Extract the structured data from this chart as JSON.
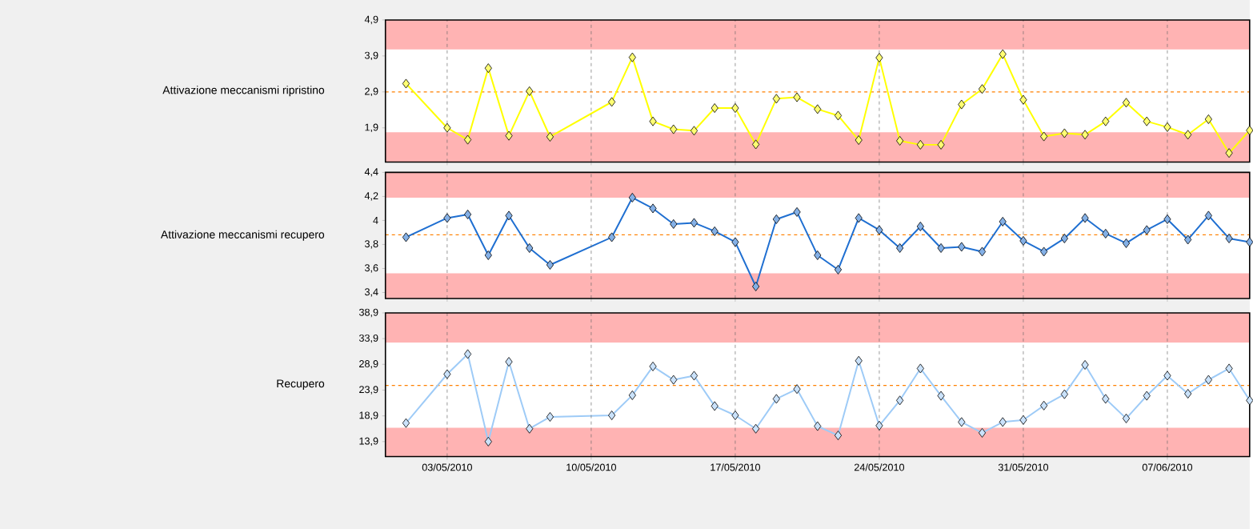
{
  "chart_data": [
    {
      "type": "line",
      "ylabel": "Attivazione meccanismi ripristino",
      "color": "#ffff00",
      "marker": "diamond",
      "line_style": "solid",
      "grid": "x",
      "tick_labels": "y",
      "x": [
        "2010-05-01",
        "2010-05-03",
        "2010-05-04",
        "2010-05-05",
        "2010-05-06",
        "2010-05-07",
        "2010-05-08",
        "2010-05-11",
        "2010-05-12",
        "2010-05-13",
        "2010-05-14",
        "2010-05-15",
        "2010-05-16",
        "2010-05-17",
        "2010-05-18",
        "2010-05-19",
        "2010-05-20",
        "2010-05-21",
        "2010-05-22",
        "2010-05-23",
        "2010-05-24",
        "2010-05-25",
        "2010-05-26",
        "2010-05-27",
        "2010-05-28",
        "2010-05-29",
        "2010-05-30",
        "2010-05-31",
        "2010-06-01",
        "2010-06-02",
        "2010-06-03",
        "2010-06-04",
        "2010-06-05",
        "2010-06-06",
        "2010-06-07",
        "2010-06-08",
        "2010-06-09",
        "2010-06-10",
        "2010-06-11"
      ],
      "values": [
        3.13,
        1.9,
        1.57,
        3.56,
        1.68,
        2.92,
        1.65,
        2.62,
        3.86,
        2.08,
        1.86,
        1.82,
        2.45,
        2.45,
        1.44,
        2.71,
        2.75,
        2.42,
        2.24,
        1.56,
        3.85,
        1.54,
        1.43,
        1.43,
        2.55,
        2.98,
        3.95,
        2.68,
        1.66,
        1.75,
        1.71,
        2.08,
        2.6,
        2.08,
        1.92,
        1.71,
        2.14,
        1.2,
        1.83
      ],
      "xlim": [
        "2010-04-30",
        "2010-06-11"
      ],
      "ylim": [
        0.95,
        4.9
      ],
      "yticks": [
        {
          "value": 1.9,
          "label": "1,9"
        },
        {
          "value": 2.9,
          "label": "2,9"
        },
        {
          "value": 3.9,
          "label": "3,9"
        },
        {
          "value": 4.9,
          "label": "4,9"
        }
      ],
      "ref_lines": [
        {
          "axis": "y",
          "value": 2.9,
          "color": "#ff8000",
          "line_style": "dashed"
        }
      ],
      "bands": [
        {
          "axis": "y",
          "from": 4.08,
          "to": 4.9,
          "color": "#ffb3b3"
        },
        {
          "axis": "y",
          "from": 0.95,
          "to": 1.78,
          "color": "#ffb3b3"
        }
      ]
    },
    {
      "type": "line",
      "ylabel": "Attivazione meccanismi recupero",
      "color": "#1f6fd1",
      "marker": "diamond",
      "line_style": "solid",
      "grid": "x",
      "tick_labels": "y",
      "x": [
        "2010-05-01",
        "2010-05-03",
        "2010-05-04",
        "2010-05-05",
        "2010-05-06",
        "2010-05-07",
        "2010-05-08",
        "2010-05-11",
        "2010-05-12",
        "2010-05-13",
        "2010-05-14",
        "2010-05-15",
        "2010-05-16",
        "2010-05-17",
        "2010-05-18",
        "2010-05-19",
        "2010-05-20",
        "2010-05-21",
        "2010-05-22",
        "2010-05-23",
        "2010-05-24",
        "2010-05-25",
        "2010-05-26",
        "2010-05-27",
        "2010-05-28",
        "2010-05-29",
        "2010-05-30",
        "2010-05-31",
        "2010-06-01",
        "2010-06-02",
        "2010-06-03",
        "2010-06-04",
        "2010-06-05",
        "2010-06-06",
        "2010-06-07",
        "2010-06-08",
        "2010-06-09",
        "2010-06-10",
        "2010-06-11"
      ],
      "values": [
        3.86,
        4.02,
        4.05,
        3.71,
        4.04,
        3.77,
        3.63,
        3.86,
        4.19,
        4.1,
        3.97,
        3.98,
        3.91,
        3.82,
        3.45,
        4.01,
        4.07,
        3.71,
        3.59,
        4.02,
        3.92,
        3.77,
        3.95,
        3.77,
        3.78,
        3.74,
        3.99,
        3.83,
        3.74,
        3.85,
        4.02,
        3.89,
        3.81,
        3.92,
        4.01,
        3.84,
        4.04,
        3.85,
        3.82
      ],
      "xlim": [
        "2010-04-30",
        "2010-06-11"
      ],
      "ylim": [
        3.35,
        4.4
      ],
      "yticks": [
        {
          "value": 3.4,
          "label": "3,4"
        },
        {
          "value": 3.6,
          "label": "3,6"
        },
        {
          "value": 3.8,
          "label": "3,8"
        },
        4,
        {
          "value": 4.2,
          "label": "4,2"
        },
        {
          "value": 4.4,
          "label": "4,4"
        }
      ],
      "ref_lines": [
        {
          "axis": "y",
          "value": 3.88,
          "color": "#ff8000",
          "line_style": "dashed"
        }
      ],
      "bands": [
        {
          "axis": "y",
          "from": 4.19,
          "to": 4.4,
          "color": "#ffb3b3"
        },
        {
          "axis": "y",
          "from": 3.35,
          "to": 3.56,
          "color": "#ffb3b3"
        }
      ]
    },
    {
      "type": "line",
      "ylabel": "Recupero",
      "color": "#9ecbf7",
      "marker": "diamond",
      "line_style": "solid",
      "grid": "x",
      "x": [
        "2010-05-01",
        "2010-05-03",
        "2010-05-04",
        "2010-05-05",
        "2010-05-06",
        "2010-05-07",
        "2010-05-08",
        "2010-05-11",
        "2010-05-12",
        "2010-05-13",
        "2010-05-14",
        "2010-05-15",
        "2010-05-16",
        "2010-05-17",
        "2010-05-18",
        "2010-05-19",
        "2010-05-20",
        "2010-05-21",
        "2010-05-22",
        "2010-05-23",
        "2010-05-24",
        "2010-05-25",
        "2010-05-26",
        "2010-05-27",
        "2010-05-28",
        "2010-05-29",
        "2010-05-30",
        "2010-05-31",
        "2010-06-01",
        "2010-06-02",
        "2010-06-03",
        "2010-06-04",
        "2010-06-05",
        "2010-06-06",
        "2010-06-07",
        "2010-06-08",
        "2010-06-09",
        "2010-06-10",
        "2010-06-11"
      ],
      "values": [
        17.5,
        27.0,
        30.9,
        13.9,
        29.4,
        16.4,
        18.7,
        19.0,
        22.9,
        28.5,
        25.9,
        26.7,
        20.8,
        19.0,
        16.4,
        22.2,
        24.1,
        16.9,
        15.1,
        29.6,
        17.0,
        21.9,
        28.1,
        22.8,
        17.7,
        15.6,
        17.7,
        18.1,
        20.9,
        23.1,
        28.8,
        22.2,
        18.4,
        22.8,
        26.7,
        23.2,
        25.9,
        28.1,
        21.9
      ],
      "xlim": [
        "2010-04-30",
        "2010-06-11"
      ],
      "xticks": [
        {
          "value": "2010-05-03",
          "label": "03/05/2010"
        },
        {
          "value": "2010-05-10",
          "label": "10/05/2010"
        },
        {
          "value": "2010-05-17",
          "label": "17/05/2010"
        },
        {
          "value": "2010-05-24",
          "label": "24/05/2010"
        },
        {
          "value": "2010-05-31",
          "label": "31/05/2010"
        },
        {
          "value": "2010-06-07",
          "label": "07/06/2010"
        }
      ],
      "ylim": [
        11,
        38.9
      ],
      "yticks": [
        {
          "value": 13.9,
          "label": "13,9"
        },
        {
          "value": 18.9,
          "label": "18,9"
        },
        {
          "value": 23.9,
          "label": "23,9"
        },
        {
          "value": 28.9,
          "label": "28,9"
        },
        {
          "value": 33.9,
          "label": "33,9"
        },
        {
          "value": 38.9,
          "label": "38,9"
        }
      ],
      "ref_lines": [
        {
          "axis": "y",
          "value": 24.8,
          "color": "#ff8000",
          "line_style": "dashed"
        }
      ],
      "bands": [
        {
          "axis": "y",
          "from": 33.15,
          "to": 38.9,
          "color": "#ffb3b3"
        },
        {
          "axis": "y",
          "from": 11,
          "to": 16.6,
          "color": "#ffb3b3"
        }
      ]
    }
  ]
}
